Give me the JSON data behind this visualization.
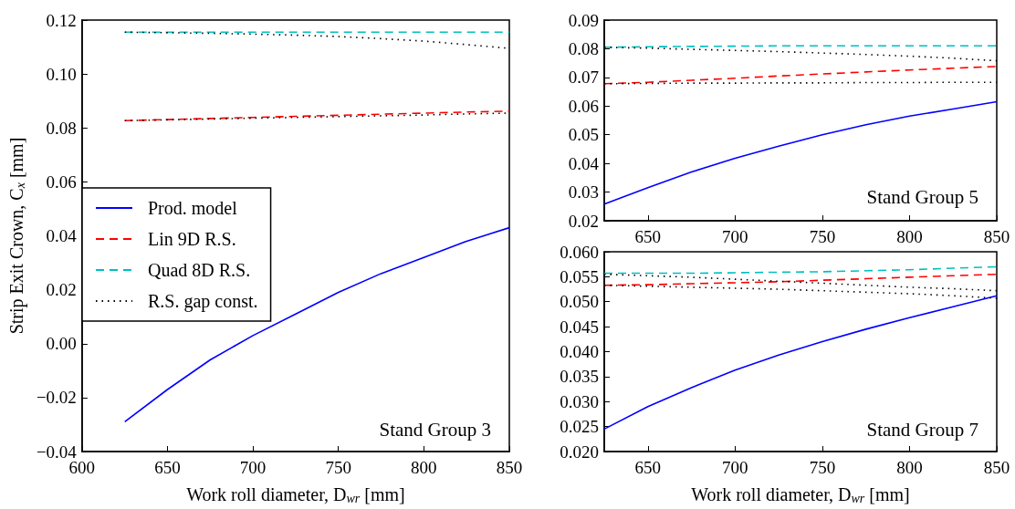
{
  "chart_data": [
    {
      "type": "line",
      "xlabel": "Work roll diameter, D$_{wr}$ [mm]",
      "ylabel": "Strip Exit Crown, C$_{x}$ [mm]",
      "annotations": [
        "Stand Group 3"
      ],
      "legend": "left",
      "x": [
        625,
        650,
        675,
        700,
        725,
        750,
        775,
        800,
        825,
        850
      ],
      "xlim": [
        600,
        850
      ],
      "xticks": [
        600,
        650,
        700,
        750,
        800,
        850
      ],
      "ylim": [
        -0.04,
        0.12
      ],
      "yticks": [
        {
          "value": -0.04,
          "label": "−0.04"
        },
        {
          "value": -0.02,
          "label": "−0.02"
        },
        {
          "value": 0,
          "label": "0.00"
        },
        {
          "value": 0.02,
          "label": "0.02"
        },
        {
          "value": 0.04,
          "label": "0.04"
        },
        {
          "value": 0.06,
          "label": "0.06"
        },
        {
          "value": 0.08,
          "label": "0.08"
        },
        {
          "value": 0.1,
          "label": "0.10"
        },
        {
          "value": 0.12,
          "label": "0.12"
        }
      ],
      "series": [
        {
          "name": "Prod. model",
          "color": "#0000ff",
          "line_style": "solid",
          "values": [
            -0.029,
            -0.017,
            -0.006,
            0.003,
            0.011,
            0.019,
            0.026,
            0.032,
            0.038,
            0.043
          ]
        },
        {
          "name": "Lin 9D R.S.",
          "color": "#ff0000",
          "line_style": "dashed",
          "values": [
            0.0827,
            0.0831,
            0.0835,
            0.0839,
            0.0843,
            0.0847,
            0.0851,
            0.0855,
            0.0859,
            0.0862
          ]
        },
        {
          "name": "Quad 8D R.S.",
          "color": "#00bfbf",
          "line_style": "dashed",
          "values": [
            0.1155,
            0.1155,
            0.1155,
            0.1155,
            0.1155,
            0.1155,
            0.1155,
            0.1155,
            0.1155,
            0.1155
          ]
        },
        {
          "name": "R.S. gap const.",
          "color": "#000000",
          "line_style": "dotted",
          "values": [
            0.1155,
            0.1153,
            0.1151,
            0.1148,
            0.1144,
            0.1139,
            0.1131,
            0.1122,
            0.1109,
            0.1095
          ]
        },
        {
          "color": "#000000",
          "line_style": "dotted",
          "values": [
            0.0827,
            0.083,
            0.0833,
            0.0836,
            0.0839,
            0.0842,
            0.0845,
            0.0848,
            0.0852,
            0.0855
          ]
        }
      ]
    },
    {
      "type": "line",
      "annotations": [
        "Stand Group 5"
      ],
      "x": [
        625,
        650,
        675,
        700,
        725,
        750,
        775,
        800,
        825,
        850
      ],
      "xlim": [
        625,
        850
      ],
      "xticks": [
        650,
        700,
        750,
        800,
        850
      ],
      "ylim": [
        0.02,
        0.09
      ],
      "yticks": [
        0.02,
        0.03,
        0.04,
        0.05,
        0.06,
        0.07,
        0.08,
        0.09
      ],
      "series": [
        {
          "color": "#0000ff",
          "line_style": "solid",
          "values": [
            0.0258,
            0.0315,
            0.037,
            0.0418,
            0.046,
            0.05,
            0.0535,
            0.0565,
            0.059,
            0.0615
          ]
        },
        {
          "color": "#ff0000",
          "line_style": "dashed",
          "values": [
            0.0678,
            0.0683,
            0.069,
            0.0697,
            0.0705,
            0.0712,
            0.0719,
            0.0726,
            0.0732,
            0.0738
          ]
        },
        {
          "color": "#00bfbf",
          "line_style": "dashed",
          "values": [
            0.0805,
            0.0807,
            0.0808,
            0.0809,
            0.081,
            0.081,
            0.081,
            0.081,
            0.081,
            0.081
          ]
        },
        {
          "color": "#000000",
          "line_style": "dotted",
          "values": [
            0.0805,
            0.0802,
            0.0798,
            0.0794,
            0.079,
            0.0785,
            0.078,
            0.0774,
            0.0767,
            0.0758
          ]
        },
        {
          "color": "#000000",
          "line_style": "dotted",
          "values": [
            0.0678,
            0.0679,
            0.068,
            0.068,
            0.0681,
            0.0681,
            0.0682,
            0.0682,
            0.0683,
            0.0683
          ]
        }
      ]
    },
    {
      "type": "line",
      "xlabel": "Work roll diameter, D$_{wr}$ [mm]",
      "annotations": [
        "Stand Group 7"
      ],
      "x": [
        625,
        650,
        675,
        700,
        725,
        750,
        775,
        800,
        825,
        850
      ],
      "xlim": [
        625,
        850
      ],
      "xticks": [
        650,
        700,
        750,
        800,
        850
      ],
      "ylim": [
        0.02,
        0.06
      ],
      "yticks": [
        {
          "value": 0.02,
          "label": "0.020"
        },
        {
          "value": 0.025,
          "label": "0.025"
        },
        {
          "value": 0.03,
          "label": "0.030"
        },
        {
          "value": 0.035,
          "label": "0.035"
        },
        {
          "value": 0.04,
          "label": "0.040"
        },
        {
          "value": 0.045,
          "label": "0.045"
        },
        {
          "value": 0.05,
          "label": "0.050"
        },
        {
          "value": 0.055,
          "label": "0.055"
        },
        {
          "value": 0.06,
          "label": "0.060"
        }
      ],
      "series": [
        {
          "color": "#0000ff",
          "line_style": "solid",
          "values": [
            0.0245,
            0.029,
            0.0328,
            0.0363,
            0.0393,
            0.042,
            0.0445,
            0.0468,
            0.049,
            0.0512
          ]
        },
        {
          "color": "#ff0000",
          "line_style": "dashed",
          "values": [
            0.0533,
            0.0534,
            0.0536,
            0.0538,
            0.054,
            0.0543,
            0.0546,
            0.0549,
            0.0552,
            0.0555
          ]
        },
        {
          "color": "#00bfbf",
          "line_style": "dashed",
          "values": [
            0.0557,
            0.0557,
            0.0557,
            0.0558,
            0.0559,
            0.056,
            0.0562,
            0.0564,
            0.0567,
            0.057
          ]
        },
        {
          "color": "#000000",
          "line_style": "dotted",
          "values": [
            0.0555,
            0.0552,
            0.0549,
            0.0545,
            0.0541,
            0.0537,
            0.0533,
            0.0529,
            0.0526,
            0.0522
          ]
        },
        {
          "color": "#000000",
          "line_style": "dotted",
          "values": [
            0.0533,
            0.0531,
            0.0529,
            0.0527,
            0.0525,
            0.0522,
            0.0519,
            0.0516,
            0.0512,
            0.0507
          ]
        }
      ]
    }
  ]
}
